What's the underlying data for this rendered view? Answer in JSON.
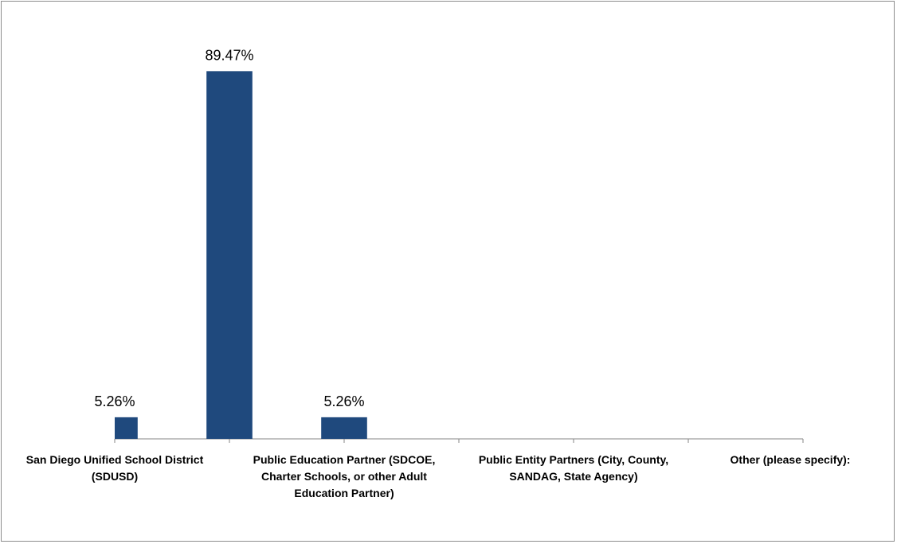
{
  "chart_data": {
    "type": "bar",
    "categories": [
      "San Diego Unified School District (SDUSD)",
      null,
      "Public Education Partner (SDCOE, Charter Schools, or other Adult Education Partner)",
      null,
      "Public Entity Partners (City, County, SANDAG, State Agency)",
      null,
      "Other (please specify):"
    ],
    "values": [
      5.26,
      89.47,
      5.26,
      null,
      null,
      null,
      null
    ],
    "value_labels": [
      "5.26%",
      "89.47%",
      "5.26%",
      null,
      null,
      null,
      null
    ],
    "color": "#1f497d",
    "ylim": [
      0,
      100
    ]
  }
}
